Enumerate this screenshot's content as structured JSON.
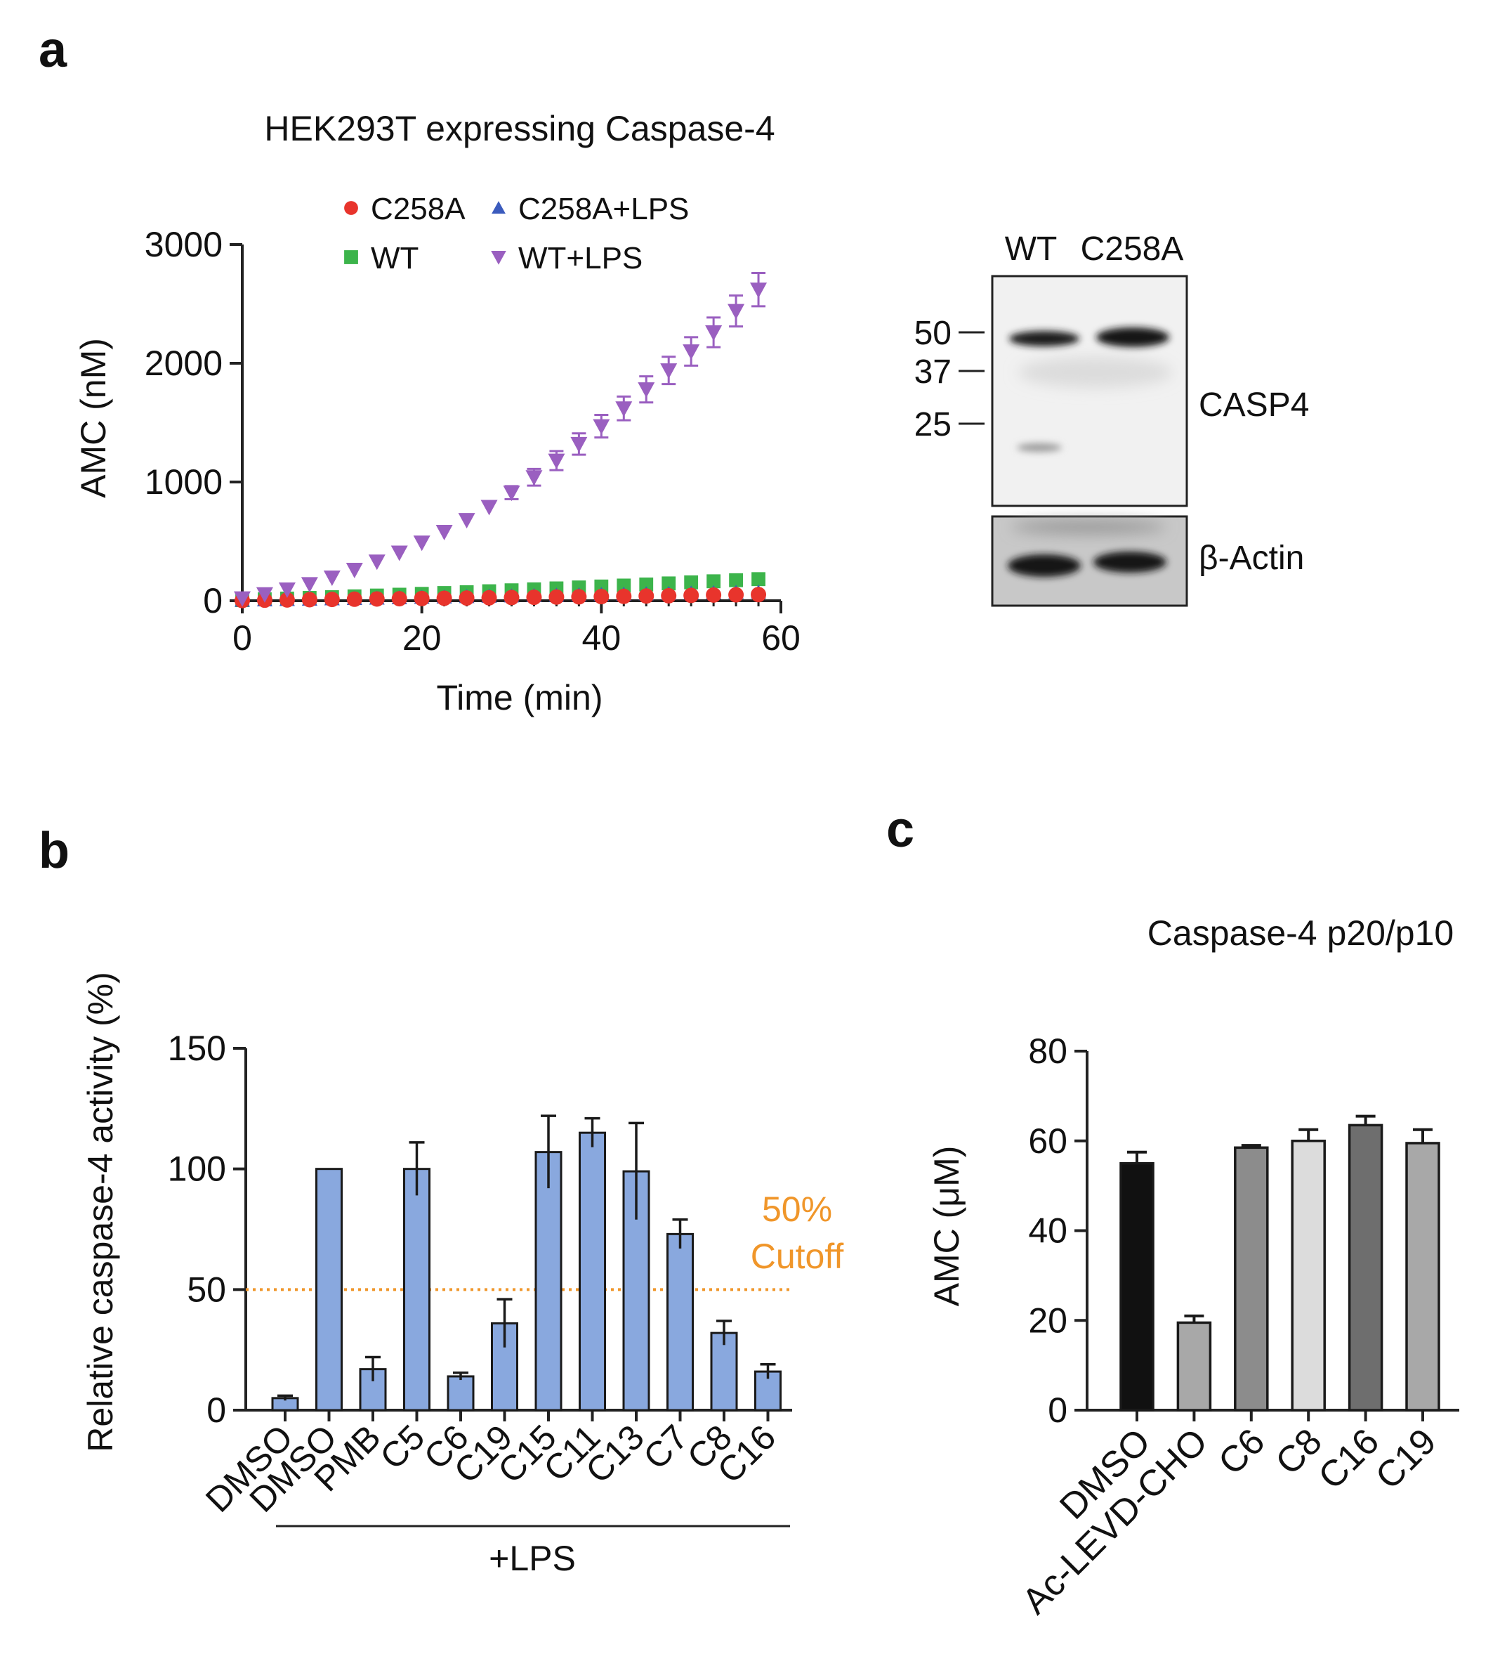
{
  "panels": {
    "a": "a",
    "b": "b",
    "c": "c"
  },
  "colors": {
    "red": "#e8342c",
    "blue": "#3b5bbd",
    "green": "#3cb44b",
    "purple": "#9a5fc0",
    "bar_b": "#89a8de",
    "cutoff": "#f0962a"
  },
  "blot": {
    "lanes": [
      "WT",
      "C258A"
    ],
    "markers": [
      "50",
      "37",
      "25"
    ],
    "labels": [
      "CASP4",
      "β-Actin"
    ]
  },
  "cutoff": {
    "line1": "50%",
    "line2": "Cutoff"
  },
  "lps_label": "+LPS",
  "chart_data": [
    {
      "id": "a",
      "type": "scatter",
      "title": "HEK293T expressing Caspase-4",
      "xlabel": "Time (min)",
      "ylabel": "AMC (nM)",
      "xlim": [
        0,
        60
      ],
      "ylim": [
        0,
        3000
      ],
      "xticks": [
        0,
        20,
        40,
        60
      ],
      "yticks": [
        0,
        1000,
        2000,
        3000
      ],
      "x": [
        0,
        2.5,
        5,
        7.5,
        10,
        12.5,
        15,
        17.5,
        20,
        22.5,
        25,
        27.5,
        30,
        32.5,
        35,
        37.5,
        40,
        42.5,
        45,
        47.5,
        50,
        52.5,
        55,
        57.5
      ],
      "series": [
        {
          "name": "C258A",
          "marker": "circle",
          "color": "red",
          "values": [
            2,
            5,
            7,
            9,
            11,
            13,
            15,
            17,
            19,
            21,
            23,
            25,
            27,
            29,
            31,
            33,
            35,
            37,
            40,
            42,
            45,
            48,
            50,
            52
          ]
        },
        {
          "name": "WT",
          "marker": "square",
          "color": "green",
          "values": [
            5,
            12,
            18,
            24,
            30,
            37,
            44,
            51,
            58,
            65,
            72,
            80,
            88,
            96,
            104,
            112,
            120,
            128,
            137,
            146,
            155,
            164,
            173,
            182
          ]
        },
        {
          "name": "C258A+LPS",
          "marker": "triangle-up",
          "color": "blue",
          "values": [
            3,
            6,
            9,
            12,
            15,
            18,
            21,
            24,
            27,
            30,
            33,
            36,
            39,
            42,
            45,
            48,
            51,
            54,
            57,
            60,
            63,
            66,
            69,
            72
          ]
        },
        {
          "name": "WT+LPS",
          "marker": "triangle-down",
          "color": "purple",
          "values": [
            20,
            55,
            95,
            140,
            195,
            260,
            330,
            405,
            490,
            580,
            680,
            790,
            910,
            1040,
            1180,
            1320,
            1470,
            1620,
            1780,
            1940,
            2100,
            2260,
            2440,
            2620
          ],
          "errors": [
            0,
            0,
            0,
            0,
            0,
            0,
            0,
            0,
            0,
            0,
            0,
            0,
            55,
            70,
            80,
            90,
            95,
            100,
            110,
            115,
            120,
            125,
            130,
            140
          ]
        }
      ]
    },
    {
      "id": "b",
      "type": "bar",
      "ylabel": "Relative caspase-4 activity (%)",
      "ylim": [
        0,
        150
      ],
      "yticks": [
        0,
        50,
        100,
        150
      ],
      "categories": [
        "DMSO",
        "DMSO",
        "PMB",
        "C5",
        "C6",
        "C19",
        "C15",
        "C11",
        "C13",
        "C7",
        "C8",
        "C16"
      ],
      "values": [
        5,
        100,
        17,
        100,
        14,
        36,
        107,
        115,
        99,
        73,
        32,
        16
      ],
      "errors": [
        1,
        0,
        5,
        11,
        1.5,
        10,
        15,
        6,
        20,
        6,
        5,
        3
      ],
      "cutoff_value": 50
    },
    {
      "id": "c",
      "type": "bar",
      "title": "Caspase-4 p20/p10",
      "ylabel": "AMC  (μM)",
      "ylim": [
        0,
        80
      ],
      "yticks": [
        0,
        20,
        40,
        60,
        80
      ],
      "categories": [
        "DMSO",
        "Ac-LEVD-CHO",
        "C6",
        "C8",
        "C16",
        "C19"
      ],
      "values": [
        55,
        19.5,
        58.5,
        60,
        63.5,
        59.5
      ],
      "errors": [
        2.5,
        1.5,
        0.5,
        2.5,
        2,
        3
      ],
      "bar_colors": [
        "#111111",
        "#a8a8a8",
        "#8c8c8c",
        "#dcdcdc",
        "#6e6e6e",
        "#a8a8a8"
      ]
    }
  ]
}
